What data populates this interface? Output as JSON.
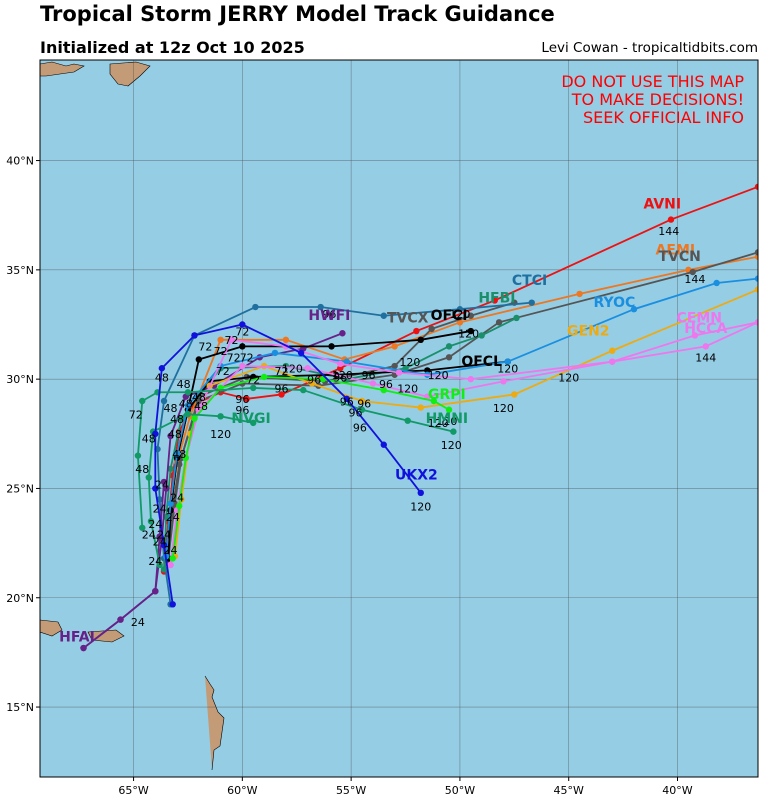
{
  "title": "Tropical Storm JERRY Model Track Guidance",
  "subtitle": "Initialized at 12z Oct 10 2025",
  "credit": "Levi Cowan - tropicaltidbits.com",
  "warning": [
    "DO NOT USE THIS MAP",
    "TO MAKE DECISIONS!",
    "SEEK OFFICIAL INFO"
  ],
  "colors": {
    "ocean": "#95cde5",
    "land": "#c39b77",
    "warning": "#ff0000"
  },
  "extent": {
    "lon": [
      -69.3,
      -36.3
    ],
    "lat": [
      11.8,
      44.6
    ]
  },
  "lon_ticks": [
    {
      "value": -65,
      "label": "65°W"
    },
    {
      "value": -60,
      "label": "60°W"
    },
    {
      "value": -55,
      "label": "55°W"
    },
    {
      "value": -50,
      "label": "50°W"
    },
    {
      "value": -45,
      "label": "45°W"
    },
    {
      "value": -40,
      "label": "40°W"
    }
  ],
  "lat_ticks": [
    {
      "value": 40,
      "label": "40°N"
    },
    {
      "value": 35,
      "label": "35°N"
    },
    {
      "value": 30,
      "label": "30°N"
    },
    {
      "value": 25,
      "label": "25°N"
    },
    {
      "value": 20,
      "label": "20°N"
    },
    {
      "value": 15,
      "label": "15°N"
    }
  ],
  "tracks": [
    {
      "name": "AVNI",
      "color": "#ee1111",
      "label_at": [
        -40.7,
        37.8
      ],
      "points": [
        [
          -63.6,
          21.2
        ],
        [
          -63.4,
          23.5
        ],
        [
          -63.2,
          25.6
        ],
        [
          -62.9,
          27.6
        ],
        [
          -62.3,
          28.8
        ],
        [
          -61.0,
          29.4
        ],
        [
          -59.8,
          29.1
        ],
        [
          -58.2,
          29.3
        ],
        [
          -55.5,
          30.5
        ],
        [
          -52.0,
          32.2
        ],
        [
          -48.4,
          33.6
        ],
        [
          -40.3,
          37.3
        ],
        [
          -36.3,
          38.8
        ]
      ],
      "hours": [
        {
          "h": "144",
          "at": [
            -40.4,
            36.6
          ]
        }
      ]
    },
    {
      "name": "AEMI",
      "color": "#ee7722",
      "label_at": [
        -40.1,
        35.7
      ],
      "points": [
        [
          -63.5,
          21.6
        ],
        [
          -63.3,
          24.0
        ],
        [
          -63.0,
          26.2
        ],
        [
          -62.4,
          28.3
        ],
        [
          -61.0,
          31.8
        ],
        [
          -58.0,
          31.8
        ],
        [
          -55.3,
          30.9
        ],
        [
          -53.0,
          31.5
        ],
        [
          -50.0,
          32.6
        ],
        [
          -44.5,
          33.9
        ],
        [
          -39.5,
          35.0
        ],
        [
          -36.3,
          35.6
        ]
      ],
      "hours": [
        {
          "h": "72",
          "at": [
            -60.5,
            31.6
          ]
        }
      ]
    },
    {
      "name": "TVCN",
      "color": "#555555",
      "label_at": [
        -39.9,
        35.4
      ],
      "points": [
        [
          -63.4,
          21.7
        ],
        [
          -63.2,
          24.1
        ],
        [
          -62.9,
          26.1
        ],
        [
          -62.0,
          29.0
        ],
        [
          -60.0,
          29.8
        ],
        [
          -56.5,
          29.7
        ],
        [
          -53.0,
          30.2
        ],
        [
          -50.5,
          31.0
        ],
        [
          -48.2,
          32.6
        ],
        [
          -39.3,
          34.9
        ],
        [
          -36.3,
          35.8
        ]
      ],
      "hours": [
        {
          "h": "144",
          "at": [
            -39.2,
            34.4
          ]
        }
      ]
    },
    {
      "name": "TVCX",
      "color": "#555555",
      "label_at": [
        -52.4,
        32.6
      ],
      "points": [
        [
          -63.4,
          21.8
        ],
        [
          -63.1,
          24.3
        ],
        [
          -62.8,
          26.4
        ],
        [
          -62.0,
          29.2
        ],
        [
          -59.8,
          30.1
        ],
        [
          -56.2,
          29.9
        ],
        [
          -53.0,
          30.6
        ],
        [
          -51.3,
          32.3
        ],
        [
          -49.5,
          32.9
        ],
        [
          -47.5,
          33.5
        ]
      ],
      "hours": [
        {
          "h": "120",
          "at": [
            -50.0,
            32.8
          ]
        }
      ]
    },
    {
      "name": "CTCI",
      "color": "#1f6f9f",
      "label_at": [
        -46.8,
        34.3
      ],
      "points": [
        [
          -63.3,
          19.7
        ],
        [
          -63.6,
          21.8
        ],
        [
          -63.8,
          24.5
        ],
        [
          -63.9,
          26.8
        ],
        [
          -63.6,
          29.0
        ],
        [
          -62.2,
          32.0
        ],
        [
          -59.4,
          33.3
        ],
        [
          -56.4,
          33.3
        ],
        [
          -53.5,
          32.9
        ],
        [
          -50.0,
          33.2
        ],
        [
          -46.7,
          33.5
        ]
      ],
      "hours": [
        {
          "h": "96",
          "at": [
            -56.0,
            32.8
          ]
        }
      ]
    },
    {
      "name": "HFBI",
      "color": "#1a8f6a",
      "label_at": [
        -48.3,
        33.5
      ],
      "points": [
        [
          -63.6,
          21.3
        ],
        [
          -63.5,
          23.7
        ],
        [
          -63.3,
          25.9
        ],
        [
          -62.8,
          28.2
        ],
        [
          -61.0,
          30.5
        ],
        [
          -58.0,
          30.6
        ],
        [
          -55.2,
          30.0
        ],
        [
          -52.5,
          30.5
        ],
        [
          -50.5,
          31.5
        ],
        [
          -49.0,
          32.0
        ],
        [
          -47.4,
          32.8
        ]
      ],
      "hours": [
        {
          "h": "120",
          "at": [
            -49.6,
            31.9
          ]
        }
      ]
    },
    {
      "name": "HWFI",
      "color": "#662288",
      "label_at": [
        -56.0,
        32.7
      ],
      "points": [
        [
          -67.3,
          17.7
        ],
        [
          -65.6,
          19.0
        ],
        [
          -64.0,
          20.3
        ],
        [
          -63.7,
          22.7
        ],
        [
          -63.5,
          25.0
        ],
        [
          -63.3,
          27.4
        ],
        [
          -62.6,
          29.2
        ],
        [
          -61.3,
          29.7
        ],
        [
          -59.2,
          31.0
        ],
        [
          -57.2,
          31.4
        ],
        [
          -55.4,
          32.1
        ]
      ],
      "hours": [
        {
          "h": "24",
          "at": [
            -64.8,
            18.7
          ]
        }
      ]
    },
    {
      "name": "HFAI",
      "color": "#662288",
      "label_at": [
        -67.6,
        18.0
      ],
      "points": [
        [
          -67.3,
          17.7
        ],
        [
          -65.6,
          19.0
        ],
        [
          -64.0,
          20.3
        ],
        [
          -63.8,
          22.8
        ],
        [
          -63.6,
          25.3
        ]
      ],
      "hours": []
    },
    {
      "name": "OFCI",
      "color": "#000000",
      "label_at": [
        -50.5,
        32.7
      ],
      "points": [
        [
          -63.4,
          21.8
        ],
        [
          -63.3,
          24.0
        ],
        [
          -63.0,
          26.4
        ],
        [
          -62.5,
          28.6
        ],
        [
          -62.0,
          30.9
        ],
        [
          -60.0,
          31.5
        ],
        [
          -55.9,
          31.5
        ],
        [
          -51.8,
          31.8
        ],
        [
          -49.5,
          32.2
        ]
      ],
      "hours": [
        {
          "h": "96",
          "at": [
            -55.5,
            29.9
          ]
        }
      ]
    },
    {
      "name": "OFCL",
      "color": "#000000",
      "label_at": [
        -49.0,
        30.6
      ],
      "points": [
        [
          -63.4,
          21.8
        ],
        [
          -63.3,
          24.0
        ],
        [
          -63.0,
          26.4
        ],
        [
          -62.5,
          28.6
        ],
        [
          -61.5,
          29.9
        ],
        [
          -59.5,
          30.1
        ],
        [
          -55.7,
          30.2
        ],
        [
          -51.5,
          30.4
        ],
        [
          -47.8,
          30.8
        ]
      ],
      "hours": [
        {
          "h": "120",
          "at": [
            -47.8,
            30.3
          ]
        }
      ]
    },
    {
      "name": "RYOC",
      "color": "#1a8fe0",
      "label_at": [
        -42.9,
        33.3
      ],
      "points": [
        [
          -63.5,
          21.9
        ],
        [
          -63.3,
          24.3
        ],
        [
          -63.0,
          26.6
        ],
        [
          -62.5,
          28.8
        ],
        [
          -61.0,
          30.6
        ],
        [
          -58.5,
          31.2
        ],
        [
          -55.2,
          30.8
        ],
        [
          -51.5,
          30.2
        ],
        [
          -47.8,
          30.8
        ],
        [
          -42.0,
          33.2
        ],
        [
          -38.2,
          34.4
        ],
        [
          -36.3,
          34.6
        ]
      ],
      "hours": [
        {
          "h": "120",
          "at": [
            -45.0,
            29.9
          ]
        }
      ]
    },
    {
      "name": "GEN2",
      "color": "#eeaa11",
      "label_at": [
        -44.1,
        32.0
      ],
      "points": [
        [
          -63.1,
          21.9
        ],
        [
          -62.8,
          24.5
        ],
        [
          -62.4,
          27.5
        ],
        [
          -61.5,
          29.7
        ],
        [
          -59.0,
          30.6
        ],
        [
          -56.8,
          29.8
        ],
        [
          -54.5,
          29.0
        ],
        [
          -51.8,
          28.7
        ],
        [
          -47.5,
          29.3
        ],
        [
          -43.0,
          31.3
        ],
        [
          -36.3,
          34.1
        ]
      ],
      "hours": [
        {
          "h": "120",
          "at": [
            -48.0,
            28.5
          ]
        }
      ]
    },
    {
      "name": "CEMN",
      "color": "#ee77ee",
      "label_at": [
        -39.0,
        32.6
      ],
      "points": [
        [
          -63.3,
          21.5
        ],
        [
          -63.0,
          24.0
        ],
        [
          -62.6,
          26.4
        ],
        [
          -62.0,
          28.6
        ],
        [
          -60.5,
          31.8
        ],
        [
          -58.0,
          31.5
        ],
        [
          -55.5,
          30.7
        ],
        [
          -52.8,
          30.3
        ],
        [
          -49.5,
          30.0
        ],
        [
          -43.0,
          30.8
        ],
        [
          -39.2,
          32.0
        ],
        [
          -36.3,
          32.6
        ]
      ],
      "hours": [
        {
          "h": "144",
          "at": [
            -38.7,
            30.8
          ]
        }
      ]
    },
    {
      "name": "HCCA",
      "color": "#ee77ee",
      "label_at": [
        -38.7,
        32.1
      ],
      "points": [
        [
          -63.3,
          21.5
        ],
        [
          -63.0,
          24.0
        ],
        [
          -62.6,
          26.4
        ],
        [
          -62.0,
          28.6
        ],
        [
          -60.0,
          30.6
        ],
        [
          -57.0,
          30.5
        ],
        [
          -54.0,
          29.8
        ],
        [
          -51.5,
          29.2
        ],
        [
          -48.0,
          29.9
        ],
        [
          -43.0,
          30.8
        ],
        [
          -38.7,
          31.5
        ],
        [
          -36.3,
          32.6
        ]
      ],
      "hours": []
    },
    {
      "name": "GRPI",
      "color": "#11ee11",
      "label_at": [
        -50.6,
        29.1
      ],
      "points": [
        [
          -63.2,
          21.8
        ],
        [
          -62.9,
          24.2
        ],
        [
          -62.6,
          26.4
        ],
        [
          -62.2,
          28.2
        ],
        [
          -61.0,
          29.6
        ],
        [
          -59.0,
          30.1
        ],
        [
          -56.3,
          30.0
        ],
        [
          -53.5,
          29.5
        ],
        [
          -51.2,
          29.0
        ],
        [
          -50.5,
          28.6
        ]
      ],
      "hours": [
        {
          "h": "120",
          "at": [
            -50.6,
            27.9
          ]
        }
      ]
    },
    {
      "name": "NVGI",
      "color": "#119966",
      "label_at": [
        -59.6,
        28.0
      ],
      "points": [
        [
          -63.8,
          21.5
        ],
        [
          -64.2,
          23.5
        ],
        [
          -64.3,
          25.5
        ],
        [
          -64.1,
          27.6
        ],
        [
          -62.5,
          28.4
        ],
        [
          -61.0,
          28.3
        ],
        [
          -59.5,
          28.0
        ]
      ],
      "hours": [
        {
          "h": "120",
          "at": [
            -61.0,
            27.3
          ]
        }
      ]
    },
    {
      "name": "HMNI",
      "color": "#119966",
      "label_at": [
        -50.6,
        28.0
      ],
      "points": [
        [
          -64.6,
          23.2
        ],
        [
          -64.8,
          26.5
        ],
        [
          -64.6,
          29.0
        ],
        [
          -63.9,
          29.4
        ],
        [
          -62.5,
          29.4
        ],
        [
          -59.5,
          29.6
        ],
        [
          -57.2,
          29.5
        ],
        [
          -54.5,
          28.6
        ],
        [
          -52.4,
          28.1
        ],
        [
          -50.3,
          27.6
        ]
      ],
      "hours": [
        {
          "h": "120",
          "at": [
            -50.4,
            26.8
          ]
        }
      ]
    },
    {
      "name": "UKX2",
      "color": "#1111dd",
      "label_at": [
        -52.0,
        25.4
      ],
      "points": [
        [
          -63.2,
          19.7
        ],
        [
          -63.6,
          22.4
        ],
        [
          -64.0,
          25.0
        ],
        [
          -64.0,
          27.5
        ],
        [
          -63.7,
          30.5
        ],
        [
          -62.2,
          32.0
        ],
        [
          -60.0,
          32.5
        ],
        [
          -57.3,
          31.2
        ],
        [
          -55.2,
          29.1
        ],
        [
          -53.5,
          27.0
        ],
        [
          -51.8,
          24.8
        ]
      ],
      "hours": [
        {
          "h": "120",
          "at": [
            -51.8,
            24.0
          ]
        }
      ]
    }
  ],
  "scatter_hours": [
    {
      "h": "72",
      "at": [
        -61.7,
        31.3
      ]
    },
    {
      "h": "72",
      "at": [
        -60.9,
        30.2
      ]
    },
    {
      "h": "72",
      "at": [
        -60.4,
        30.8
      ]
    },
    {
      "h": "72",
      "at": [
        -59.8,
        30.8
      ]
    },
    {
      "h": "72",
      "at": [
        -59.5,
        29.8
      ]
    },
    {
      "h": "72",
      "at": [
        -58.2,
        30.2
      ]
    },
    {
      "h": "72",
      "at": [
        -61.0,
        31.1
      ]
    },
    {
      "h": "72",
      "at": [
        -60.0,
        32.0
      ]
    },
    {
      "h": "72",
      "at": [
        -64.9,
        28.2
      ]
    },
    {
      "h": "48",
      "at": [
        -63.7,
        29.9
      ]
    },
    {
      "h": "48",
      "at": [
        -62.7,
        29.6
      ]
    },
    {
      "h": "48",
      "at": [
        -63.3,
        28.5
      ]
    },
    {
      "h": "48",
      "at": [
        -63.0,
        28.0
      ]
    },
    {
      "h": "48",
      "at": [
        -63.1,
        27.3
      ]
    },
    {
      "h": "48",
      "at": [
        -62.9,
        26.4
      ]
    },
    {
      "h": "48",
      "at": [
        -64.3,
        27.1
      ]
    },
    {
      "h": "48",
      "at": [
        -64.6,
        25.7
      ]
    },
    {
      "h": "48",
      "at": [
        -61.9,
        28.6
      ]
    },
    {
      "h": "48",
      "at": [
        -62.0,
        29.0
      ]
    },
    {
      "h": "48",
      "at": [
        -62.6,
        28.7
      ]
    },
    {
      "h": "24",
      "at": [
        -63.0,
        24.4
      ]
    },
    {
      "h": "24",
      "at": [
        -63.2,
        23.5
      ]
    },
    {
      "h": "24",
      "at": [
        -64.0,
        23.2
      ]
    },
    {
      "h": "24",
      "at": [
        -63.8,
        22.4
      ]
    },
    {
      "h": "24",
      "at": [
        -63.6,
        22.7
      ]
    },
    {
      "h": "24",
      "at": [
        -63.3,
        22.0
      ]
    },
    {
      "h": "24",
      "at": [
        -64.3,
        22.7
      ]
    },
    {
      "h": "24",
      "at": [
        -64.0,
        21.5
      ]
    },
    {
      "h": "24",
      "at": [
        -63.7,
        25.0
      ]
    },
    {
      "h": "24",
      "at": [
        -63.8,
        23.9
      ]
    },
    {
      "h": "96",
      "at": [
        -60.0,
        28.9
      ]
    },
    {
      "h": "96",
      "at": [
        -60.0,
        28.4
      ]
    },
    {
      "h": "96",
      "at": [
        -58.2,
        29.4
      ]
    },
    {
      "h": "96",
      "at": [
        -56.7,
        29.8
      ]
    },
    {
      "h": "96",
      "at": [
        -54.2,
        30.0
      ]
    },
    {
      "h": "96",
      "at": [
        -53.4,
        29.6
      ]
    },
    {
      "h": "96",
      "at": [
        -55.2,
        28.8
      ]
    },
    {
      "h": "96",
      "at": [
        -54.8,
        28.3
      ]
    },
    {
      "h": "96",
      "at": [
        -54.4,
        28.7
      ]
    },
    {
      "h": "96",
      "at": [
        -54.6,
        27.6
      ]
    },
    {
      "h": "120",
      "at": [
        -55.4,
        30.0
      ]
    },
    {
      "h": "120",
      "at": [
        -57.7,
        30.3
      ]
    },
    {
      "h": "120",
      "at": [
        -52.4,
        29.4
      ]
    },
    {
      "h": "120",
      "at": [
        -51.0,
        30.0
      ]
    },
    {
      "h": "120",
      "at": [
        -52.3,
        30.6
      ]
    },
    {
      "h": "120",
      "at": [
        -51.0,
        27.8
      ]
    }
  ]
}
